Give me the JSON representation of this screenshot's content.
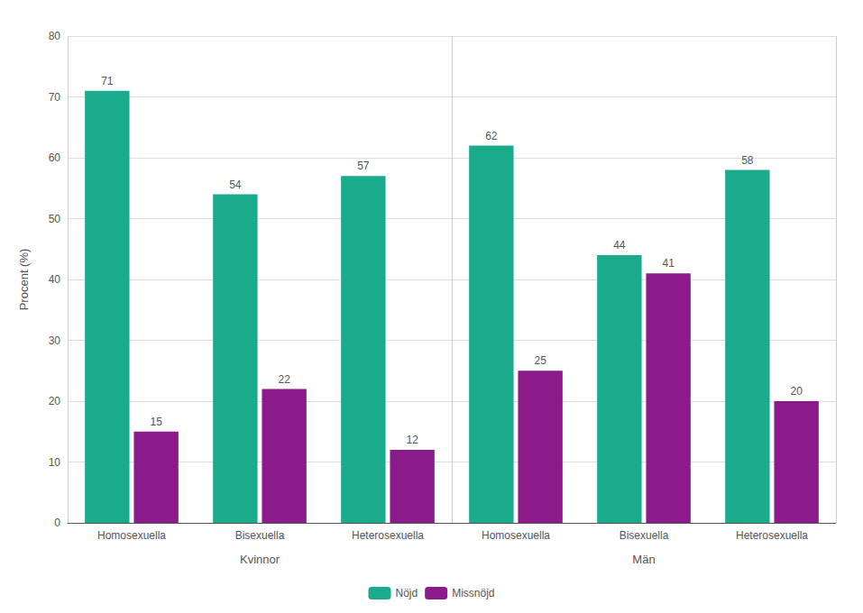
{
  "chart_data": {
    "type": "bar",
    "y_label": "Procent (%)",
    "categories": [
      "Homosexuella",
      "Bisexuella",
      "Heterosexuella",
      "Homosexuella",
      "Bisexuella",
      "Heterosexuella"
    ],
    "annotations": [
      "Kvinnor",
      "Män"
    ],
    "series": [
      {
        "name": "Nöjd",
        "color": "#1aaa8c",
        "values": [
          71,
          54,
          57,
          62,
          44,
          58
        ]
      },
      {
        "name": "Missnöjd",
        "color": "#8b1a8b",
        "values": [
          15,
          22,
          12,
          25,
          41,
          20
        ]
      }
    ],
    "ylim": [
      0,
      80
    ],
    "yticks": [
      0,
      10,
      20,
      30,
      40,
      50,
      60,
      70,
      80
    ],
    "grid": true,
    "legend": "bottom",
    "data_labels": true
  }
}
